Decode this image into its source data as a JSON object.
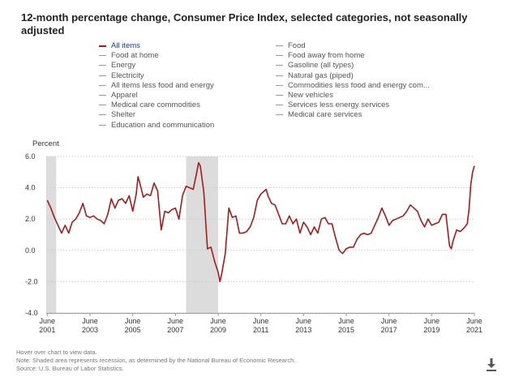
{
  "title": "12-month percentage change, Consumer Price Index, selected categories, not seasonally adjusted",
  "legend": {
    "left": [
      "All items",
      "Food at home",
      "Energy",
      "Electricity",
      "All items less food and energy",
      "Apparel",
      "Medical care commodities",
      "Shelter",
      "Education and communication"
    ],
    "right": [
      "Food",
      "Food away from home",
      "Gasoline (all types)",
      "Natural gas (piped)",
      "Commodities less food and energy com...",
      "New vehicles",
      "Services less energy services",
      "Medical care services"
    ]
  },
  "footer": {
    "hover_note": "Hover over chart to view data.",
    "recession_note": "Note: Shaded area represents recession, as determined by the National Bureau of Economic Research.",
    "source": "Source: U.S. Bureau of Labor Statistics."
  },
  "colors": {
    "series": "#a31c1c",
    "recession": "#dcdcdc",
    "active_legend_text": "#1e3a8a",
    "grid": "#cccccc"
  },
  "icons": {
    "download": "download-icon"
  },
  "chart_data": {
    "type": "line",
    "ylabel": "Percent",
    "ylim": [
      -4.0,
      6.0
    ],
    "yticks": [
      "6.0",
      "4.0",
      "2.0",
      "0.0",
      "-2.0",
      "-4.0"
    ],
    "x_ticks": [
      {
        "date": "2001-06",
        "line1": "June",
        "line2": "2001"
      },
      {
        "date": "2003-06",
        "line1": "June",
        "line2": "2003"
      },
      {
        "date": "2005-06",
        "line1": "June",
        "line2": "2005"
      },
      {
        "date": "2007-06",
        "line1": "June",
        "line2": "2007"
      },
      {
        "date": "2009-06",
        "line1": "June",
        "line2": "2009"
      },
      {
        "date": "2011-06",
        "line1": "June",
        "line2": "2011"
      },
      {
        "date": "2013-06",
        "line1": "June",
        "line2": "2013"
      },
      {
        "date": "2015-06",
        "line1": "June",
        "line2": "2015"
      },
      {
        "date": "2017-06",
        "line1": "June",
        "line2": "2017"
      },
      {
        "date": "2019-06",
        "line1": "June",
        "line2": "2019"
      },
      {
        "date": "2021-06",
        "line1": "June",
        "line2": "2021"
      }
    ],
    "recessions": [
      [
        "2001-03",
        "2001-11"
      ],
      [
        "2007-12",
        "2009-06"
      ]
    ],
    "grid": true,
    "series": [
      {
        "name": "All items",
        "x": [
          "2001-06",
          "2001-08",
          "2001-10",
          "2001-12",
          "2002-02",
          "2002-04",
          "2002-06",
          "2002-08",
          "2002-10",
          "2002-12",
          "2003-02",
          "2003-04",
          "2003-06",
          "2003-08",
          "2003-10",
          "2003-12",
          "2004-02",
          "2004-04",
          "2004-06",
          "2004-08",
          "2004-10",
          "2004-12",
          "2005-02",
          "2005-04",
          "2005-06",
          "2005-08",
          "2005-09",
          "2005-10",
          "2005-12",
          "2006-02",
          "2006-04",
          "2006-06",
          "2006-08",
          "2006-10",
          "2006-12",
          "2007-02",
          "2007-04",
          "2007-06",
          "2007-08",
          "2007-10",
          "2007-12",
          "2008-02",
          "2008-04",
          "2008-06",
          "2008-07",
          "2008-08",
          "2008-10",
          "2008-12",
          "2009-02",
          "2009-04",
          "2009-06",
          "2009-07",
          "2009-08",
          "2009-10",
          "2009-12",
          "2010-02",
          "2010-04",
          "2010-06",
          "2010-08",
          "2010-10",
          "2010-12",
          "2011-02",
          "2011-04",
          "2011-06",
          "2011-08",
          "2011-09",
          "2011-10",
          "2011-12",
          "2012-02",
          "2012-04",
          "2012-06",
          "2012-08",
          "2012-10",
          "2012-12",
          "2013-02",
          "2013-04",
          "2013-06",
          "2013-08",
          "2013-10",
          "2013-12",
          "2014-02",
          "2014-04",
          "2014-06",
          "2014-08",
          "2014-10",
          "2014-12",
          "2015-02",
          "2015-04",
          "2015-06",
          "2015-08",
          "2015-10",
          "2015-12",
          "2016-02",
          "2016-04",
          "2016-06",
          "2016-08",
          "2016-10",
          "2016-12",
          "2017-02",
          "2017-04",
          "2017-06",
          "2017-08",
          "2017-10",
          "2017-12",
          "2018-02",
          "2018-04",
          "2018-06",
          "2018-08",
          "2018-10",
          "2018-12",
          "2019-02",
          "2019-04",
          "2019-06",
          "2019-08",
          "2019-10",
          "2019-12",
          "2020-02",
          "2020-04",
          "2020-05",
          "2020-06",
          "2020-08",
          "2020-10",
          "2020-12",
          "2021-02",
          "2021-03",
          "2021-04",
          "2021-05",
          "2021-06"
        ],
        "values": [
          3.2,
          2.7,
          2.1,
          1.6,
          1.1,
          1.6,
          1.1,
          1.8,
          2.0,
          2.4,
          3.0,
          2.2,
          2.1,
          2.2,
          2.0,
          1.9,
          1.7,
          2.3,
          3.3,
          2.7,
          3.2,
          3.3,
          3.0,
          3.5,
          2.5,
          3.6,
          4.7,
          4.3,
          3.4,
          3.6,
          3.5,
          4.3,
          3.8,
          1.3,
          2.5,
          2.4,
          2.6,
          2.7,
          2.0,
          3.5,
          4.1,
          4.0,
          3.9,
          5.0,
          5.6,
          5.4,
          3.7,
          0.1,
          0.2,
          -0.7,
          -1.4,
          -2.0,
          -1.5,
          -0.2,
          2.7,
          2.1,
          2.2,
          1.1,
          1.1,
          1.2,
          1.5,
          2.1,
          3.2,
          3.6,
          3.8,
          3.9,
          3.5,
          3.0,
          2.9,
          2.3,
          1.7,
          1.7,
          2.2,
          1.7,
          2.0,
          1.1,
          1.8,
          1.5,
          1.0,
          1.5,
          1.1,
          2.0,
          2.1,
          1.7,
          1.7,
          0.8,
          0.0,
          -0.2,
          0.1,
          0.2,
          0.2,
          0.7,
          1.0,
          1.1,
          1.0,
          1.1,
          1.6,
          2.1,
          2.7,
          2.2,
          1.6,
          1.9,
          2.0,
          2.1,
          2.2,
          2.5,
          2.9,
          2.7,
          2.5,
          1.9,
          1.5,
          2.0,
          1.6,
          1.7,
          1.8,
          2.3,
          2.3,
          0.3,
          0.1,
          0.6,
          1.3,
          1.2,
          1.4,
          1.7,
          2.6,
          4.2,
          5.0,
          5.4
        ]
      }
    ]
  }
}
